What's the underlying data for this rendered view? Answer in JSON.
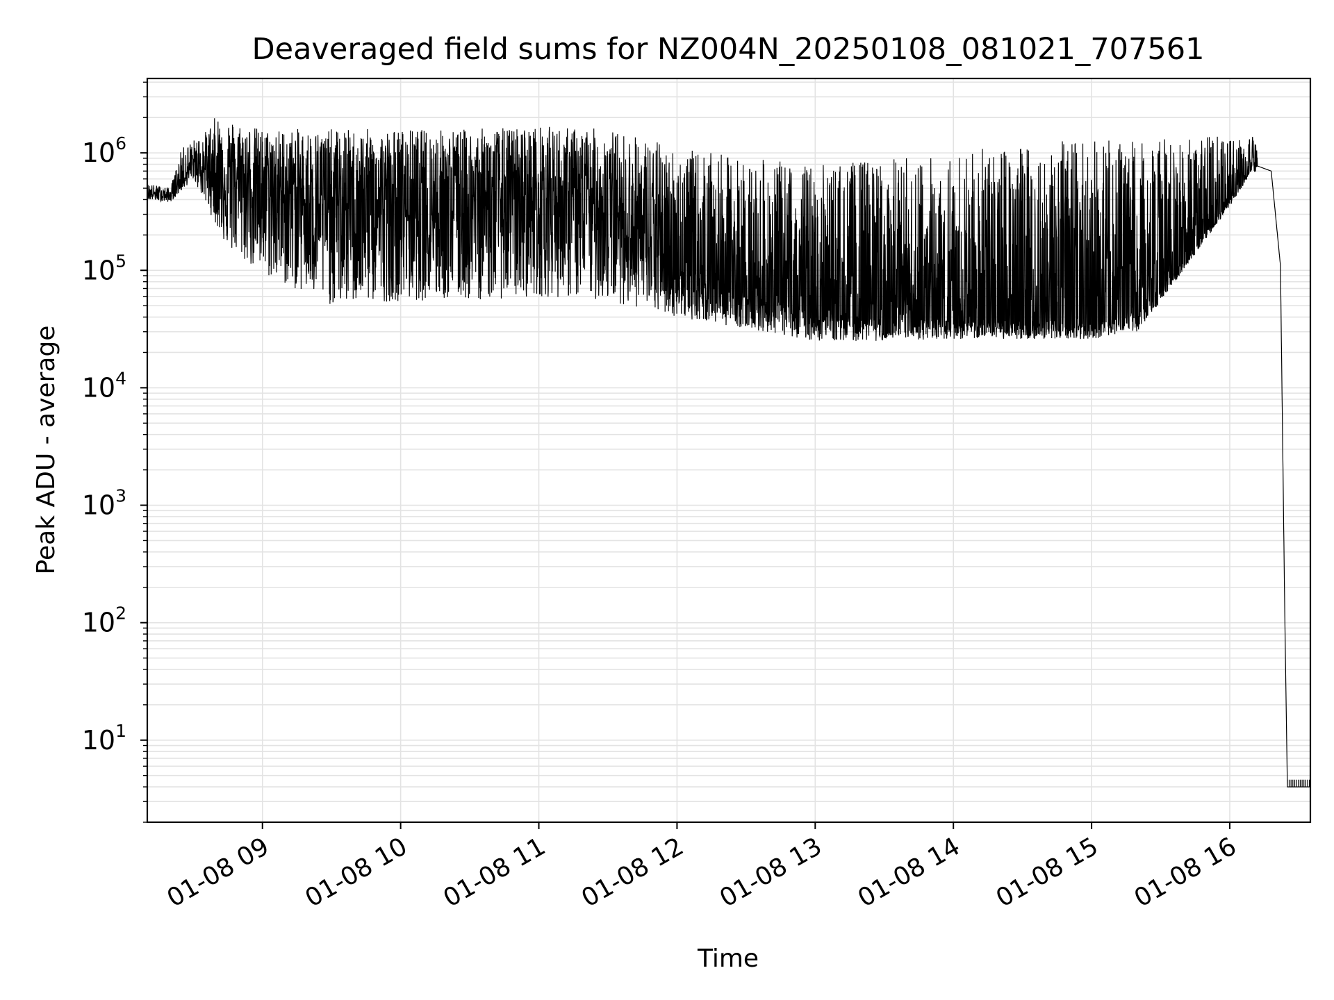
{
  "chart_data": {
    "type": "line",
    "title": "Deaveraged field sums for NZ004N_20250108_081021_707561",
    "xlabel": "Time",
    "ylabel": "Peak ADU - average",
    "yscale": "log",
    "ylim": [
      2,
      4300000
    ],
    "xlim": [
      "01-08 08:10",
      "01-08 16:35"
    ],
    "grid": true,
    "line_color": "#000000",
    "grid_color": "#e3e3e3",
    "x_ticks": [
      {
        "t": "01-08 09:00",
        "label": "01-08 09"
      },
      {
        "t": "01-08 10:00",
        "label": "01-08 10"
      },
      {
        "t": "01-08 11:00",
        "label": "01-08 11"
      },
      {
        "t": "01-08 12:00",
        "label": "01-08 12"
      },
      {
        "t": "01-08 13:00",
        "label": "01-08 13"
      },
      {
        "t": "01-08 14:00",
        "label": "01-08 14"
      },
      {
        "t": "01-08 15:00",
        "label": "01-08 15"
      },
      {
        "t": "01-08 16:00",
        "label": "01-08 16"
      }
    ],
    "y_ticks": [
      {
        "value": 10,
        "base": "10",
        "exp": "1"
      },
      {
        "value": 100,
        "base": "10",
        "exp": "2"
      },
      {
        "value": 1000,
        "base": "10",
        "exp": "3"
      },
      {
        "value": 10000,
        "base": "10",
        "exp": "4"
      },
      {
        "value": 100000,
        "base": "10",
        "exp": "5"
      },
      {
        "value": 1000000,
        "base": "10",
        "exp": "6"
      }
    ],
    "series": [
      {
        "style": "upper envelope of signal",
        "points": [
          [
            "01-08 08:10",
            550000
          ],
          [
            "01-08 08:20",
            500000
          ],
          [
            "01-08 08:25",
            1100000
          ],
          [
            "01-08 08:35",
            1500000
          ],
          [
            "01-08 08:40",
            2100000
          ],
          [
            "01-08 09:00",
            1600000
          ],
          [
            "01-08 09:30",
            1600000
          ],
          [
            "01-08 10:00",
            1600000
          ],
          [
            "01-08 10:30",
            1600000
          ],
          [
            "01-08 11:00",
            1700000
          ],
          [
            "01-08 11:30",
            1600000
          ],
          [
            "01-08 11:50",
            1300000
          ],
          [
            "01-08 12:00",
            1100000
          ],
          [
            "01-08 12:30",
            900000
          ],
          [
            "01-08 13:00",
            800000
          ],
          [
            "01-08 13:30",
            900000
          ],
          [
            "01-08 14:00",
            1000000
          ],
          [
            "01-08 14:30",
            1200000
          ],
          [
            "01-08 15:00",
            1300000
          ],
          [
            "01-08 15:30",
            1300000
          ],
          [
            "01-08 15:50",
            1400000
          ],
          [
            "01-08 16:10",
            1400000
          ],
          [
            "01-08 16:15",
            900000
          ],
          [
            "01-08 16:20",
            600000
          ],
          [
            "01-08 16:22",
            120000
          ],
          [
            "01-08 16:24",
            100
          ],
          [
            "01-08 16:25",
            4
          ]
        ]
      },
      {
        "style": "lower envelope of signal",
        "points": [
          [
            "01-08 08:10",
            400000
          ],
          [
            "01-08 08:20",
            380000
          ],
          [
            "01-08 08:30",
            600000
          ],
          [
            "01-08 08:45",
            150000
          ],
          [
            "01-08 09:00",
            90000
          ],
          [
            "01-08 09:30",
            50000
          ],
          [
            "01-08 10:00",
            55000
          ],
          [
            "01-08 10:30",
            55000
          ],
          [
            "01-08 11:00",
            60000
          ],
          [
            "01-08 11:30",
            55000
          ],
          [
            "01-08 12:00",
            40000
          ],
          [
            "01-08 12:30",
            32000
          ],
          [
            "01-08 13:00",
            25000
          ],
          [
            "01-08 13:30",
            25000
          ],
          [
            "01-08 14:00",
            26000
          ],
          [
            "01-08 14:30",
            26000
          ],
          [
            "01-08 15:00",
            26000
          ],
          [
            "01-08 15:20",
            30000
          ],
          [
            "01-08 15:40",
            100000
          ],
          [
            "01-08 16:00",
            350000
          ],
          [
            "01-08 16:10",
            700000
          ],
          [
            "01-08 16:18",
            500000
          ],
          [
            "01-08 16:22",
            90000
          ],
          [
            "01-08 16:24",
            50
          ],
          [
            "01-08 16:25",
            4
          ]
        ]
      },
      {
        "style": "median level of signal",
        "points": [
          [
            "01-08 08:10",
            450000
          ],
          [
            "01-08 08:20",
            430000
          ],
          [
            "01-08 08:30",
            800000
          ],
          [
            "01-08 09:00",
            500000
          ],
          [
            "01-08 09:30",
            350000
          ],
          [
            "01-08 10:00",
            350000
          ],
          [
            "01-08 10:30",
            380000
          ],
          [
            "01-08 11:00",
            420000
          ],
          [
            "01-08 11:30",
            350000
          ],
          [
            "01-08 12:00",
            100000
          ],
          [
            "01-08 12:30",
            60000
          ],
          [
            "01-08 13:00",
            45000
          ],
          [
            "01-08 13:30",
            38000
          ],
          [
            "01-08 14:00",
            38000
          ],
          [
            "01-08 14:30",
            38000
          ],
          [
            "01-08 15:00",
            36000
          ],
          [
            "01-08 15:20",
            45000
          ],
          [
            "01-08 15:40",
            120000
          ],
          [
            "01-08 16:00",
            400000
          ],
          [
            "01-08 16:10",
            800000
          ],
          [
            "01-08 16:18",
            700000
          ],
          [
            "01-08 16:22",
            110000
          ],
          [
            "01-08 16:24",
            80
          ],
          [
            "01-08 16:25",
            4
          ],
          [
            "01-08 16:35",
            4
          ]
        ]
      }
    ]
  }
}
